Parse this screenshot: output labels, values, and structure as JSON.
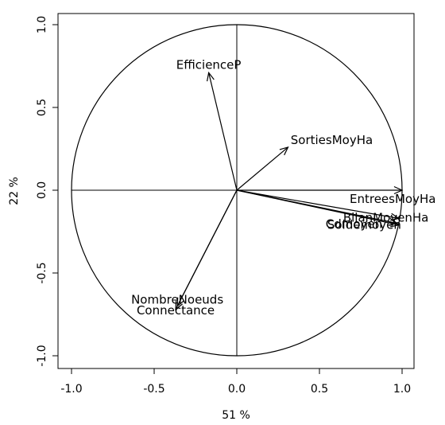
{
  "chart_data": {
    "type": "correlation-circle",
    "xlabel": "51 %",
    "ylabel": "22 %",
    "xlim": [
      -1.0,
      1.0
    ],
    "ylim": [
      -1.0,
      1.0
    ],
    "x_ticks": [
      {
        "value": -1.0,
        "label": "-1.0"
      },
      {
        "value": -0.5,
        "label": "-0.5"
      },
      {
        "value": 0.0,
        "label": "0.0"
      },
      {
        "value": 0.5,
        "label": "0.5"
      },
      {
        "value": 1.0,
        "label": "1.0"
      }
    ],
    "y_ticks": [
      {
        "value": -1.0,
        "label": "-1.0"
      },
      {
        "value": -0.5,
        "label": "-0.5"
      },
      {
        "value": 0.0,
        "label": "0.0"
      },
      {
        "value": 0.5,
        "label": "0.5"
      },
      {
        "value": 1.0,
        "label": "1.0"
      }
    ],
    "unit_circle": true,
    "variables": [
      {
        "name": "EfficienceP",
        "x": -0.17,
        "y": 0.71
      },
      {
        "name": "SortiesMoyHa",
        "x": 0.31,
        "y": 0.26
      },
      {
        "name": "EntreesMoyHa",
        "x": 1.0,
        "y": 0.0
      },
      {
        "name": "BilanMoyenHa",
        "x": 0.98,
        "y": -0.17
      },
      {
        "name": "Cdmoyen",
        "x": 0.97,
        "y": -0.2
      },
      {
        "name": "Soldemoyen",
        "x": 0.98,
        "y": -0.21
      },
      {
        "name": "NombreNoeuds",
        "x": -0.36,
        "y": -0.7
      },
      {
        "name": "Connectance",
        "x": -0.37,
        "y": -0.72
      }
    ]
  }
}
